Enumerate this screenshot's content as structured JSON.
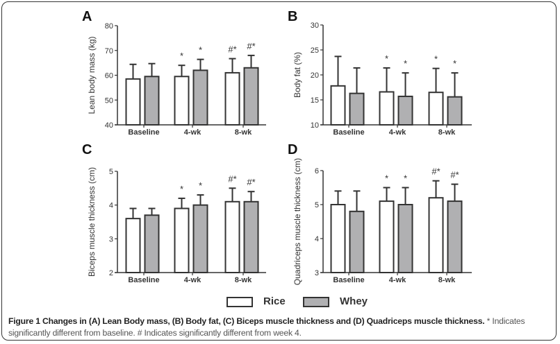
{
  "colors": {
    "rice": "#ffffff",
    "whey": "#b0b0b2",
    "stroke": "#333333",
    "text": "#333333"
  },
  "legend": {
    "items": [
      {
        "label": "Rice",
        "color": "#ffffff"
      },
      {
        "label": "Whey",
        "color": "#b0b0b2"
      }
    ]
  },
  "caption": {
    "title": "Figure 1 Changes in (A) Lean Body mass, (B) Body fat, (C) Biceps muscle thickness and (D) Quadriceps muscle thickness.",
    "note1": " * Indicates significantly different from baseline. # Indicates significantly different from week 4."
  },
  "chart_data": [
    {
      "panel": "A",
      "type": "bar",
      "ylabel": "Lean body mass (kg)",
      "categories": [
        "Baseline",
        "4-wk",
        "8-wk"
      ],
      "ylim": [
        40,
        80
      ],
      "yticks": [
        40,
        50,
        60,
        70,
        80
      ],
      "series": [
        {
          "name": "Rice",
          "values": [
            58.5,
            59.5,
            61.0
          ],
          "error_upper": [
            64.4,
            64.0,
            66.7
          ]
        },
        {
          "name": "Whey",
          "values": [
            59.5,
            62.0,
            63.0
          ],
          "error_upper": [
            64.7,
            66.4,
            68.0
          ]
        }
      ],
      "annotations": [
        [
          "",
          "*",
          "#*"
        ],
        [
          "",
          "*",
          "#*"
        ]
      ]
    },
    {
      "panel": "B",
      "type": "bar",
      "ylabel": "Body fat (%)",
      "categories": [
        "Baseline",
        "4-wk",
        "8-wk"
      ],
      "ylim": [
        10,
        30
      ],
      "yticks": [
        10,
        15,
        20,
        25,
        30
      ],
      "series": [
        {
          "name": "Rice",
          "values": [
            17.8,
            16.6,
            16.5
          ],
          "error_upper": [
            23.7,
            21.4,
            21.3
          ]
        },
        {
          "name": "Whey",
          "values": [
            16.3,
            15.7,
            15.6
          ],
          "error_upper": [
            21.4,
            20.4,
            20.4
          ]
        }
      ],
      "annotations": [
        [
          "",
          "*",
          "*"
        ],
        [
          "",
          "*",
          "*"
        ]
      ]
    },
    {
      "panel": "C",
      "type": "bar",
      "ylabel": "Biceps muscle thickness (cm)",
      "categories": [
        "Baseline",
        "4-wk",
        "8-wk"
      ],
      "ylim": [
        2,
        5
      ],
      "yticks": [
        2,
        3,
        4,
        5
      ],
      "series": [
        {
          "name": "Rice",
          "values": [
            3.6,
            3.9,
            4.1
          ],
          "error_upper": [
            3.9,
            4.2,
            4.5
          ]
        },
        {
          "name": "Whey",
          "values": [
            3.7,
            4.0,
            4.1
          ],
          "error_upper": [
            3.9,
            4.3,
            4.4
          ]
        }
      ],
      "annotations": [
        [
          "",
          "*",
          "#*"
        ],
        [
          "",
          "*",
          "#*"
        ]
      ]
    },
    {
      "panel": "D",
      "type": "bar",
      "ylabel": "Quadriceps muscle thickness (cm)",
      "categories": [
        "Baseline",
        "4-wk",
        "8-wk"
      ],
      "ylim": [
        3,
        6
      ],
      "yticks": [
        3,
        4,
        5,
        6
      ],
      "series": [
        {
          "name": "Rice",
          "values": [
            5.0,
            5.1,
            5.2
          ],
          "error_upper": [
            5.4,
            5.5,
            5.7
          ]
        },
        {
          "name": "Whey",
          "values": [
            4.8,
            5.0,
            5.1
          ],
          "error_upper": [
            5.4,
            5.5,
            5.6
          ]
        }
      ],
      "annotations": [
        [
          "",
          "*",
          "#*"
        ],
        [
          "",
          "*",
          "#*"
        ]
      ]
    }
  ]
}
